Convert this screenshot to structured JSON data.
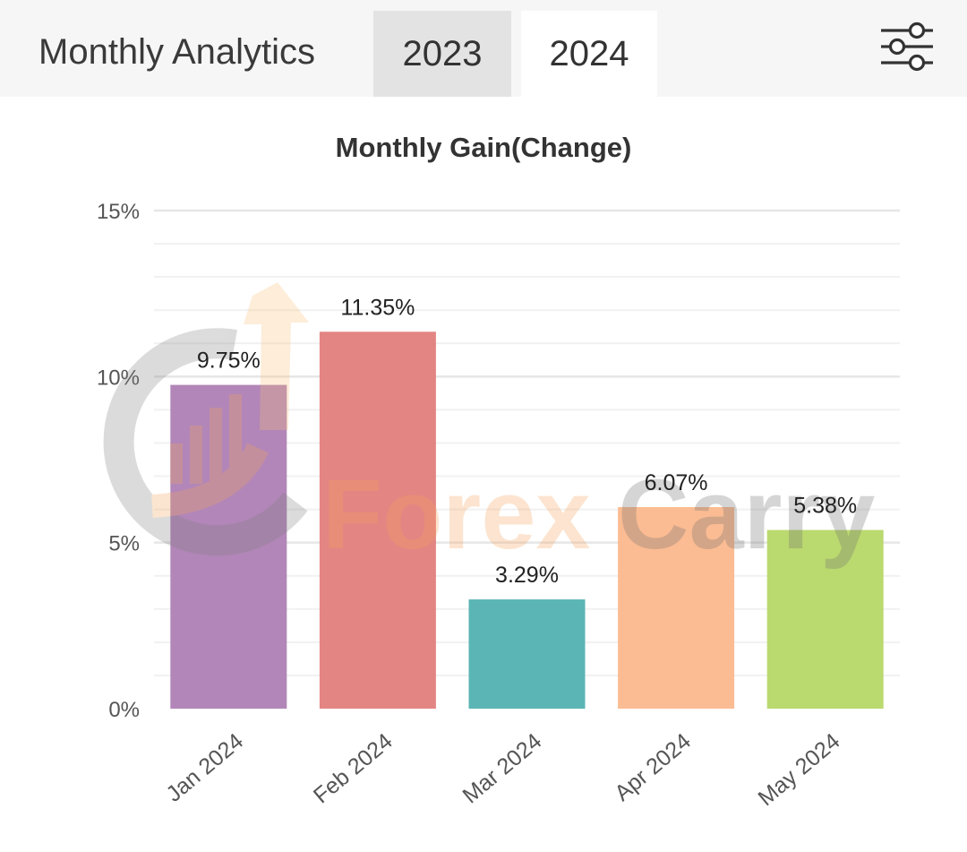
{
  "header": {
    "title": "Monthly Analytics",
    "tabs": [
      {
        "label": "2023",
        "selected": false
      },
      {
        "label": "2024",
        "selected": true
      }
    ],
    "filter_icon": "sliders-icon"
  },
  "chart_data": {
    "type": "bar",
    "title": "Monthly Gain(Change)",
    "categories": [
      "Jan 2024",
      "Feb 2024",
      "Mar 2024",
      "Apr 2024",
      "May 2024"
    ],
    "values": [
      9.75,
      11.35,
      3.29,
      6.07,
      5.38
    ],
    "data_labels": [
      "9.75%",
      "11.35%",
      "3.29%",
      "6.07%",
      "5.38%"
    ],
    "colors": [
      "#b286b8",
      "#e38583",
      "#5bb5b5",
      "#fbbc93",
      "#bad96f"
    ],
    "ylim": [
      0,
      15
    ],
    "yticks": [
      0,
      5,
      10,
      15
    ],
    "ytick_labels": [
      "0%",
      "5%",
      "10%",
      "15%"
    ],
    "xlabel": "",
    "ylabel": "",
    "grid": true,
    "legend": false
  },
  "watermark": {
    "text": "ForexCarry"
  }
}
